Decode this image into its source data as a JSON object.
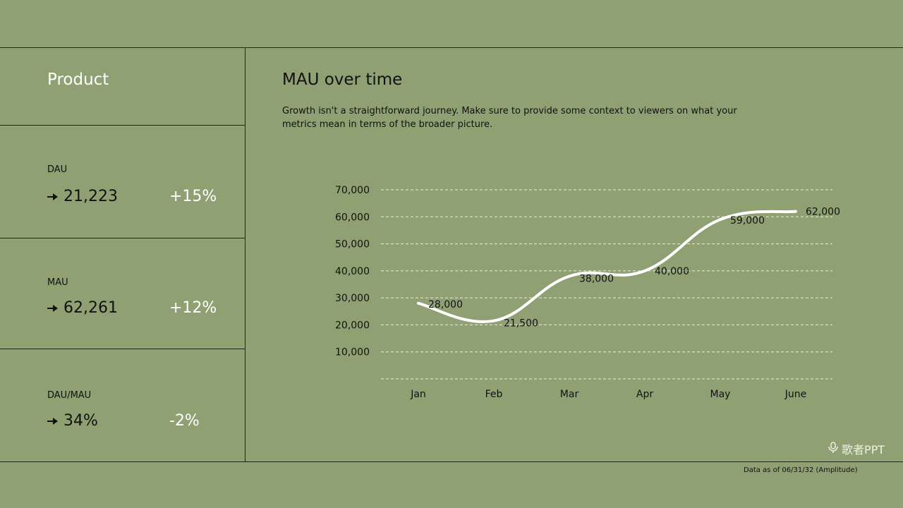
{
  "panel": {
    "title": "Product",
    "metrics": [
      {
        "label": "DAU",
        "value": "21,223",
        "change": "+15%"
      },
      {
        "label": "MAU",
        "value": "62,261",
        "change": "+12%"
      },
      {
        "label": "DAU/MAU",
        "value": "34%",
        "change": "-2%"
      }
    ]
  },
  "chart": {
    "title": "MAU over time",
    "subtitle": "Growth isn't a straightforward journey. Make sure to provide some context to viewers on what your metrics mean in terms of the broader picture."
  },
  "chart_data": {
    "type": "line",
    "categories": [
      "Jan",
      "Feb",
      "Mar",
      "Apr",
      "May",
      "June"
    ],
    "values": [
      28000,
      21500,
      38000,
      40000,
      59000,
      62000
    ],
    "data_labels": [
      "28,000",
      "21,500",
      "38,000",
      "40,000",
      "59,000",
      "62,000"
    ],
    "ylim": [
      0,
      70000
    ],
    "yticks": [
      "10,000",
      "20,000",
      "30,000",
      "40,000",
      "50,000",
      "60,000",
      "70,000"
    ],
    "grid": true,
    "line_color": "#ffffff",
    "grid_color": "#e8eddc"
  },
  "footnote": "Data as of 06/31/32 (Amplitude)",
  "watermark": "歌者PPT"
}
